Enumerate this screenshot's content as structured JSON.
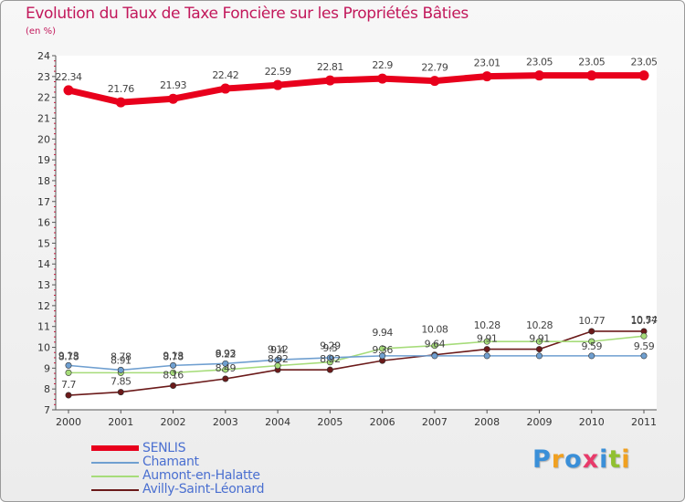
{
  "header": {
    "title": "Evolution du Taux de Taxe Foncière sur les Propriétés Bâties",
    "subtitle": "(en %)"
  },
  "logo": {
    "text": "Proxiti",
    "colors": [
      "#3a8fd8",
      "#f0a020",
      "#3a8fd8",
      "#e83a6a",
      "#3a8fd8",
      "#90c030",
      "#f0a020"
    ]
  },
  "chart_data": {
    "type": "line",
    "title": "Evolution du Taux de Taxe Foncière sur les Propriétés Bâties",
    "ylabel": "(en %)",
    "xlabel": "",
    "ylim": [
      7,
      24
    ],
    "y_ticks": [
      7,
      8,
      9,
      10,
      11,
      12,
      13,
      14,
      15,
      16,
      17,
      18,
      19,
      20,
      21,
      22,
      23,
      24
    ],
    "grid": false,
    "legend_position": "bottom-left",
    "categories": [
      "2000",
      "2001",
      "2002",
      "2003",
      "2004",
      "2005",
      "2006",
      "2007",
      "2008",
      "2009",
      "2010",
      "2011"
    ],
    "series": [
      {
        "name": "SENLIS",
        "color": "#e8001c",
        "values": [
          22.34,
          21.76,
          21.93,
          22.42,
          22.59,
          22.81,
          22.9,
          22.79,
          23.01,
          23.05,
          23.05,
          23.05
        ],
        "labels": [
          "22.34",
          "21.76",
          "21.93",
          "22.42",
          "22.59",
          "22.81",
          "22.9",
          "22.79",
          "23.01",
          "23.05",
          "23.05",
          "23.05"
        ]
      },
      {
        "name": "Chamant",
        "color": "#6f9fd0",
        "values": [
          9.13,
          8.91,
          9.13,
          9.22,
          9.4,
          9.5,
          9.59,
          9.59,
          9.59,
          9.59,
          9.59,
          9.59
        ],
        "labels": [
          "9.13",
          "8.91",
          "9.13",
          "9.22",
          "9.4",
          "9.5",
          "",
          "",
          "",
          "",
          "9.59",
          "9.59"
        ]
      },
      {
        "name": "Aumont-en-Halatte",
        "color": "#a6dc7a",
        "values": [
          8.78,
          8.78,
          8.78,
          8.93,
          9.12,
          9.29,
          9.94,
          10.08,
          10.28,
          10.28,
          10.28,
          10.54
        ],
        "labels": [
          "8.78",
          "8.78",
          "8.78",
          "8.93",
          "9.12",
          "9.29",
          "9.94",
          "10.08",
          "10.28",
          "10.28",
          "",
          "10.54"
        ]
      },
      {
        "name": "Avilly-Saint-Léonard",
        "color": "#6b1a1a",
        "values": [
          7.7,
          7.85,
          8.16,
          8.49,
          8.92,
          8.92,
          9.36,
          9.64,
          9.91,
          9.91,
          10.77,
          10.77
        ],
        "labels": [
          "7.7",
          "7.85",
          "8.16",
          "8.49",
          "8.92",
          "8.92",
          "9.36",
          "9.64",
          "9.91",
          "9.91",
          "10.77",
          "10.77"
        ]
      }
    ]
  }
}
